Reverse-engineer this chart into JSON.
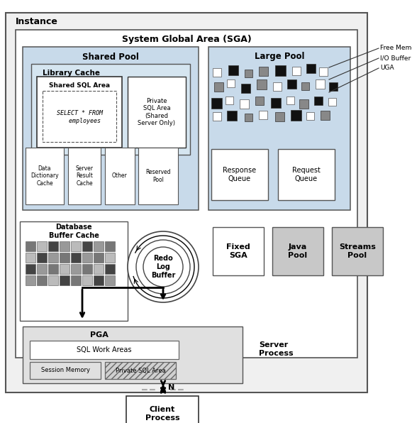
{
  "title": "Instance",
  "sga_label": "System Global Area (SGA)",
  "shared_pool_label": "Shared Pool",
  "large_pool_label": "Large Pool",
  "library_cache_label": "Library Cache",
  "shared_sql_area_label": "Shared SQL Area",
  "sql_text": "SELECT * FROM\n   employees",
  "private_sql_label": "Private\nSQL Area\n(Shared\nServer Only)",
  "sub_boxes": [
    "Data\nDictionary\nCache",
    "Server\nResult\nCache",
    "Other",
    "Reserved\nPool"
  ],
  "large_pool_sub": [
    "Response\nQueue",
    "Request\nQueue"
  ],
  "db_buffer_label": "Database\nBuffer Cache",
  "redo_label": "Redo\nLog\nBuffer",
  "fixed_sga_label": "Fixed\nSGA",
  "java_pool_label": "Java\nPool",
  "streams_pool_label": "Streams\nPool",
  "pga_label": "PGA",
  "sql_work_label": "SQL Work Areas",
  "server_process_label": "Server\nProcess",
  "session_mem_label": "Session Memory",
  "private_sql_area2_label": "Private SQL Area",
  "client_process_label": "Client\nProcess",
  "legend_labels": [
    "Free Memory",
    "I/O Buffer Area",
    "UGA"
  ],
  "bg_color": "#ffffff"
}
